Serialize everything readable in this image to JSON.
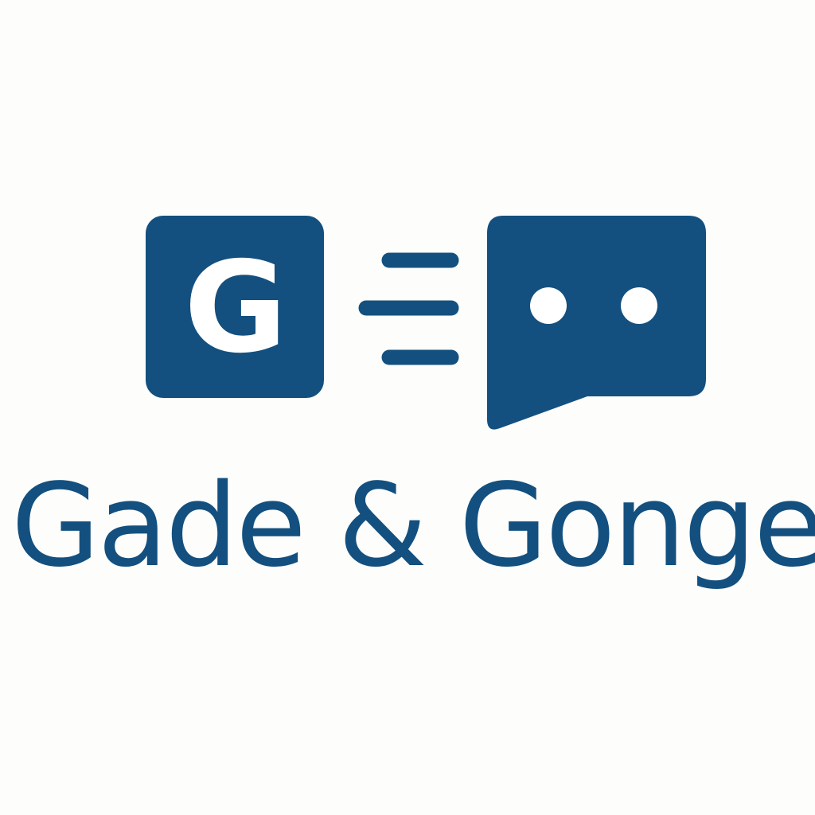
{
  "colors": {
    "background": "#fdfdfb",
    "brand": "#13507f",
    "icon_foreground": "#ffffff"
  },
  "logo": {
    "g_tile_letter": "G",
    "icons": [
      "g-tile-icon",
      "speed-lines-icon",
      "chat-bubble-icon"
    ],
    "wordmark": "Gade & Gonge"
  }
}
